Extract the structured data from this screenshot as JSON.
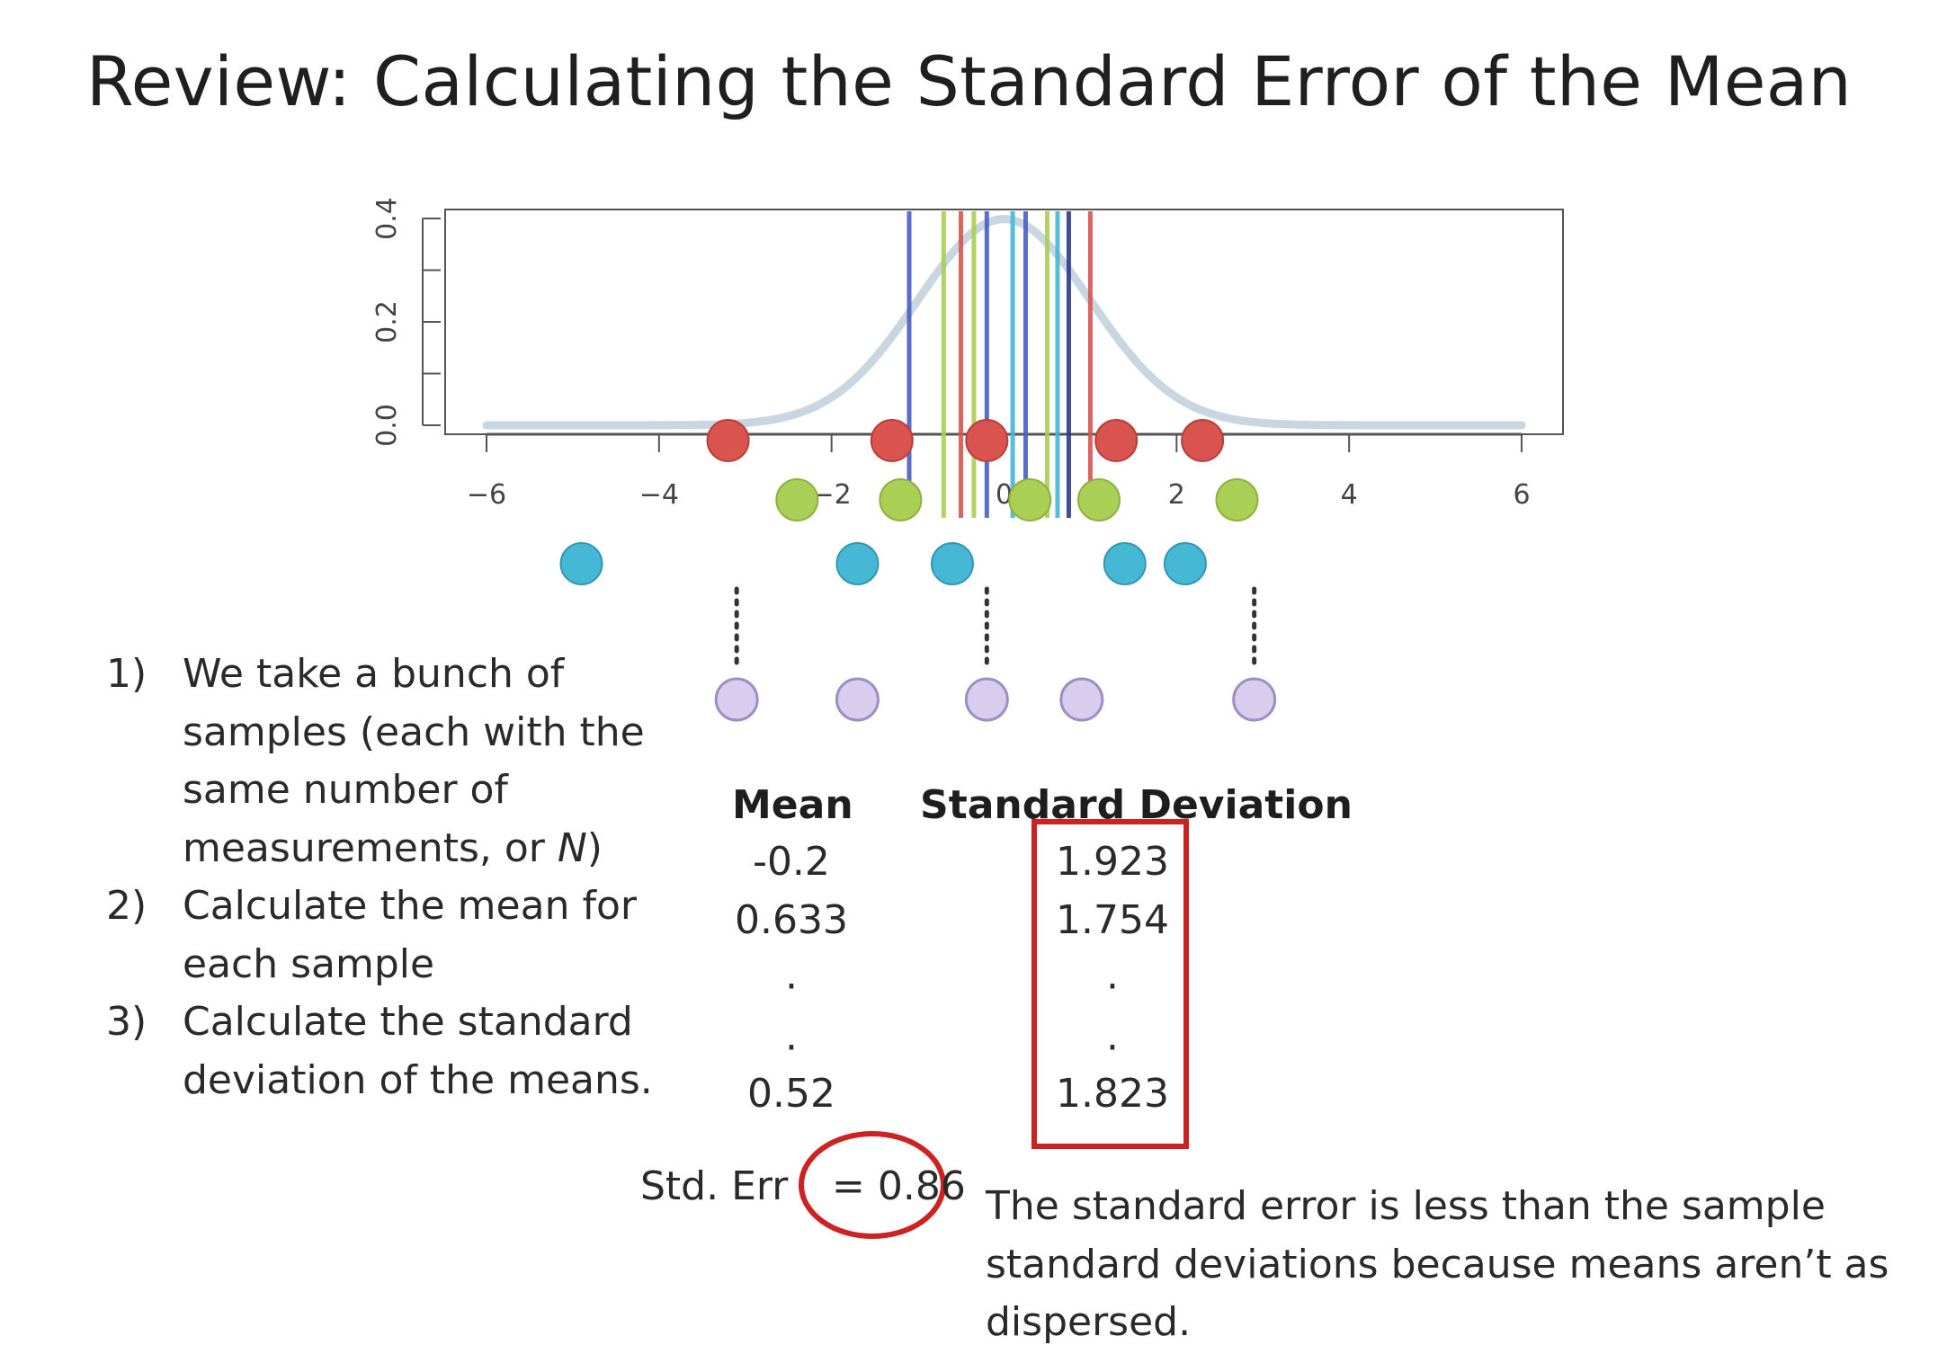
{
  "title": "Review: Calculating the Standard Error of the Mean",
  "colors": {
    "red": "#d9534f",
    "green": "#a9cf54",
    "blue": "#45b8d5",
    "purple": "#d8cdef",
    "density_curve": "#c8d6e2",
    "highlight": "#cc2222"
  },
  "chart_data": {
    "type": "scatter",
    "xlim": [
      -6,
      6
    ],
    "ylim": [
      0,
      0.4
    ],
    "x_ticks": [
      "-6",
      "-4",
      "-2",
      "0",
      "2",
      "4",
      "6"
    ],
    "y_ticks": [
      "0.0",
      "0.2",
      "0.4"
    ],
    "density": "standard normal",
    "sample_lines_x": [
      -1.1,
      -0.7,
      -0.5,
      -0.35,
      -0.2,
      0.1,
      0.25,
      0.5,
      0.62,
      0.75,
      1.0
    ],
    "samples": [
      {
        "color": "red",
        "x": [
          -3.2,
          -1.3,
          -0.2,
          1.3,
          2.3
        ]
      },
      {
        "color": "green",
        "x": [
          -2.4,
          -1.2,
          0.3,
          1.1,
          2.7
        ]
      },
      {
        "color": "blue",
        "x": [
          -4.9,
          -1.7,
          -0.6,
          1.4,
          2.1
        ]
      }
    ],
    "means": [
      -3.1,
      -1.7,
      -0.2,
      0.9,
      2.9
    ]
  },
  "steps": [
    {
      "num": "1)",
      "text": "We take a bunch of samples (each with the same number of measurements, or ",
      "emph": "N",
      "after": ")"
    },
    {
      "num": "2)",
      "text": "Calculate the mean for each sample"
    },
    {
      "num": "3)",
      "text": "Calculate the standard deviation of the means."
    }
  ],
  "table": {
    "mean_header": "Mean",
    "sd_header": "Standard Deviation",
    "means": [
      "-0.2",
      "0.633",
      "0.52"
    ],
    "sds": [
      "1.923",
      "1.754",
      "1.823"
    ]
  },
  "stderr": {
    "label": "Std. Err",
    "value": "= 0.86"
  },
  "note": "The standard error is less than the sample standard deviations because means aren’t as dispersed."
}
